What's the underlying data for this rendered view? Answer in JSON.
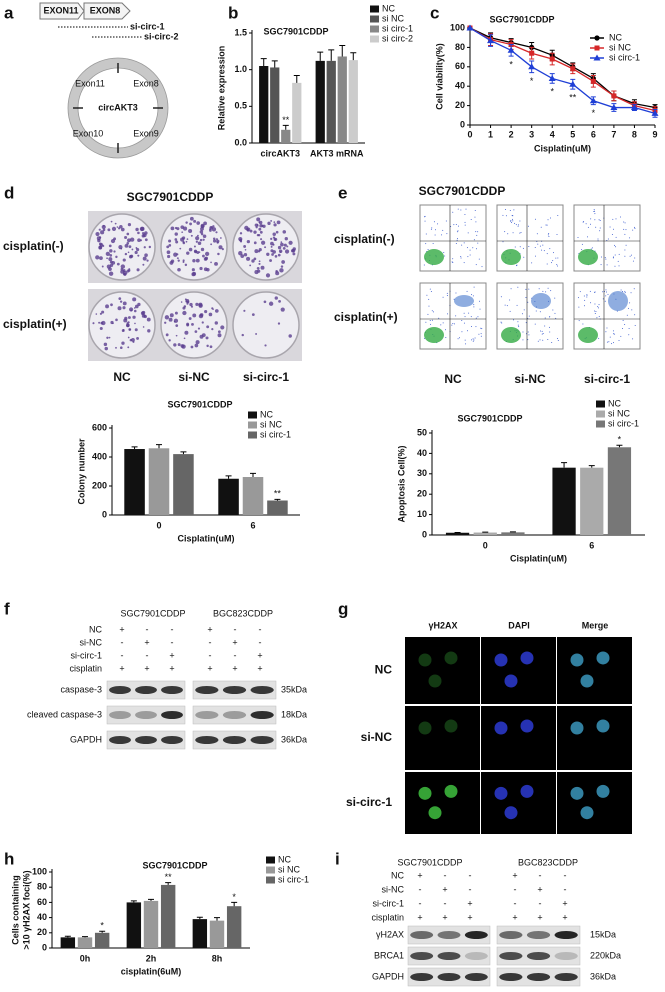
{
  "panel_labels": [
    "a",
    "b",
    "c",
    "d",
    "e",
    "f",
    "g",
    "h",
    "i"
  ],
  "panel_a": {
    "exons": [
      "EXON11",
      "EXON8"
    ],
    "sirnas": [
      "si-circ-1",
      "si-circ-2"
    ],
    "circle_label": "circAKT3",
    "circle_exons": [
      "Exon11",
      "Exon8",
      "Exon10",
      "Exon9"
    ]
  },
  "panel_d": {
    "title": "SGC7901CDDP",
    "rows": [
      "cisplatin(-)",
      "cisplatin(+)"
    ],
    "columns": [
      "NC",
      "si-NC",
      "si-circ-1"
    ]
  },
  "panel_e": {
    "title": "SGC7901CDDP",
    "rows": [
      "cisplatin(-)",
      "cisplatin(+)"
    ],
    "columns": [
      "NC",
      "si-NC",
      "si-circ-1"
    ]
  },
  "panel_f": {
    "cell_lines": [
      "SGC7901CDDP",
      "BGC823CDDP"
    ],
    "conditions": [
      {
        "label": "NC",
        "signs": [
          "+",
          "-",
          "-",
          "+",
          "-",
          "-"
        ]
      },
      {
        "label": "si-NC",
        "signs": [
          "-",
          "+",
          "-",
          "-",
          "+",
          "-"
        ]
      },
      {
        "label": "si-circ-1",
        "signs": [
          "-",
          "-",
          "+",
          "-",
          "-",
          "+"
        ]
      },
      {
        "label": "cisplatin",
        "signs": [
          "+",
          "+",
          "+",
          "+",
          "+",
          "+"
        ]
      }
    ],
    "bands": [
      {
        "label": "caspase-3",
        "size": "35kDa"
      },
      {
        "label": "cleaved caspase-3",
        "size": "18kDa"
      },
      {
        "label": "GAPDH",
        "size": "36kDa"
      }
    ]
  },
  "panel_g": {
    "columns": [
      "γH2AX",
      "DAPI",
      "Merge"
    ],
    "rows": [
      "NC",
      "si-NC",
      "si-circ-1"
    ]
  },
  "panel_i": {
    "cell_lines": [
      "SGC7901CDDP",
      "BGC823CDDP"
    ],
    "conditions": [
      {
        "label": "NC",
        "signs": [
          "+",
          "-",
          "-",
          "+",
          "-",
          "-"
        ]
      },
      {
        "label": "si-NC",
        "signs": [
          "-",
          "+",
          "-",
          "-",
          "+",
          "-"
        ]
      },
      {
        "label": "si-circ-1",
        "signs": [
          "-",
          "-",
          "+",
          "-",
          "-",
          "+"
        ]
      },
      {
        "label": "cisplatin",
        "signs": [
          "+",
          "+",
          "+",
          "+",
          "+",
          "+"
        ]
      }
    ],
    "bands": [
      {
        "label": "γH2AX",
        "size": "15kDa"
      },
      {
        "label": "BRCA1",
        "size": "220kDa"
      },
      {
        "label": "GAPDH",
        "size": "36kDa"
      }
    ]
  },
  "chart_data": [
    {
      "type": "bar",
      "title": "SGC7901CDDP",
      "y_label": "Relative expression",
      "categories": [
        "circAKT3",
        "AKT3 mRNA"
      ],
      "series": [
        {
          "name": "NC",
          "color": "#111111",
          "values": [
            1.05,
            1.12
          ],
          "errors": [
            0.1,
            0.12
          ]
        },
        {
          "name": "si NC",
          "color": "#555555",
          "values": [
            1.03,
            1.12
          ],
          "errors": [
            0.09,
            0.15
          ]
        },
        {
          "name": "si circ-1",
          "color": "#888888",
          "values": [
            0.18,
            1.18
          ],
          "errors": [
            0.06,
            0.15
          ],
          "significance": [
            "**",
            null
          ]
        },
        {
          "name": "si circ-2",
          "color": "#cccccc",
          "values": [
            0.82,
            1.13
          ],
          "errors": [
            0.1,
            0.1
          ]
        }
      ],
      "ylim": [
        0,
        1.5
      ],
      "yticks": [
        {
          "value": 0,
          "label": "0.0"
        },
        0.5,
        {
          "value": 1,
          "label": "1.0"
        },
        1.5
      ],
      "legend": "upper right"
    },
    {
      "type": "line",
      "title": "SGC7901CDDP",
      "x_label": "Cisplatin(uM)",
      "y_label": "Cell viability(%)",
      "x": [
        0,
        1,
        2,
        3,
        4,
        5,
        6,
        7,
        8,
        9
      ],
      "series": [
        {
          "name": "NC",
          "color": "#000000",
          "marker": "circle",
          "values": [
            100,
            90,
            85,
            80,
            72,
            60,
            48,
            30,
            22,
            18
          ],
          "errors": [
            0,
            5,
            4,
            5,
            5,
            4,
            5,
            5,
            4,
            3
          ]
        },
        {
          "name": "si NC",
          "color": "#d62728",
          "marker": "square",
          "values": [
            100,
            88,
            83,
            74,
            68,
            58,
            45,
            30,
            20,
            15
          ],
          "errors": [
            0,
            6,
            5,
            6,
            6,
            5,
            6,
            5,
            4,
            4
          ]
        },
        {
          "name": "si circ-1",
          "color": "#1f3fd6",
          "marker": "triangle",
          "values": [
            100,
            87,
            77,
            60,
            48,
            42,
            25,
            18,
            18,
            12
          ],
          "errors": [
            0,
            6,
            6,
            6,
            5,
            5,
            4,
            4,
            3,
            4
          ],
          "significance": [
            null,
            null,
            "*",
            "*",
            "*",
            "**",
            "*",
            null,
            null,
            null
          ]
        }
      ],
      "xlim": [
        0,
        9
      ],
      "xticks": [
        0,
        1,
        2,
        3,
        4,
        5,
        6,
        7,
        8,
        9
      ],
      "ylim": [
        0,
        100
      ],
      "yticks": [
        0,
        20,
        40,
        60,
        80,
        100
      ],
      "legend": "upper right"
    },
    {
      "type": "bar",
      "title": "SGC7901CDDP",
      "x_label": "Cisplatin(uM)",
      "y_label": "Colony number",
      "categories": [
        "0",
        "6"
      ],
      "series": [
        {
          "name": "NC",
          "color": "#111111",
          "values": [
            455,
            250
          ],
          "errors": [
            15,
            20
          ]
        },
        {
          "name": "si NC",
          "color": "#999999",
          "values": [
            460,
            262
          ],
          "errors": [
            25,
            25
          ]
        },
        {
          "name": "si circ-1",
          "color": "#666666",
          "values": [
            420,
            100
          ],
          "errors": [
            15,
            8
          ],
          "significance": [
            null,
            "**"
          ]
        }
      ],
      "ylim": [
        0,
        600
      ],
      "yticks": [
        0,
        200,
        400,
        600
      ],
      "legend": "upper right"
    },
    {
      "type": "bar",
      "title": "SGC7901CDDP",
      "x_label": "Cisplatin(uM)",
      "y_label": "Apoptosis Cell(%)",
      "categories": [
        "0",
        "6"
      ],
      "series": [
        {
          "name": "NC",
          "color": "#111111",
          "values": [
            1.1,
            33
          ],
          "errors": [
            0.15,
            2.5
          ]
        },
        {
          "name": "si NC",
          "color": "#aaaaaa",
          "values": [
            1.2,
            33
          ],
          "errors": [
            0.2,
            1
          ]
        },
        {
          "name": "si circ-1",
          "color": "#777777",
          "values": [
            1.3,
            43
          ],
          "errors": [
            0.25,
            1
          ],
          "significance": [
            null,
            "*"
          ]
        }
      ],
      "ylim": [
        0,
        50
      ],
      "yticks": [
        0,
        10,
        20,
        30,
        40,
        50
      ],
      "legend": "upper right"
    },
    {
      "type": "bar",
      "title": "SGC7901CDDP",
      "x_label": "cisplatin(6uM)",
      "y_label": [
        "Cells containing",
        ">10 γH2AX foci(%)"
      ],
      "categories": [
        "0h",
        "2h",
        "8h"
      ],
      "series": [
        {
          "name": "NC",
          "color": "#111111",
          "values": [
            14,
            60,
            38
          ],
          "errors": [
            1.5,
            2,
            2.5
          ]
        },
        {
          "name": "si NC",
          "color": "#999999",
          "values": [
            14,
            62,
            36
          ],
          "errors": [
            1,
            2,
            4
          ]
        },
        {
          "name": "si circ-1",
          "color": "#666666",
          "values": [
            20,
            83,
            55
          ],
          "errors": [
            2,
            3,
            5
          ],
          "significance": [
            "*",
            "**",
            "*"
          ]
        }
      ],
      "ylim": [
        0,
        100
      ],
      "yticks": [
        0,
        20,
        40,
        60,
        80,
        100
      ],
      "legend": "upper right"
    }
  ]
}
